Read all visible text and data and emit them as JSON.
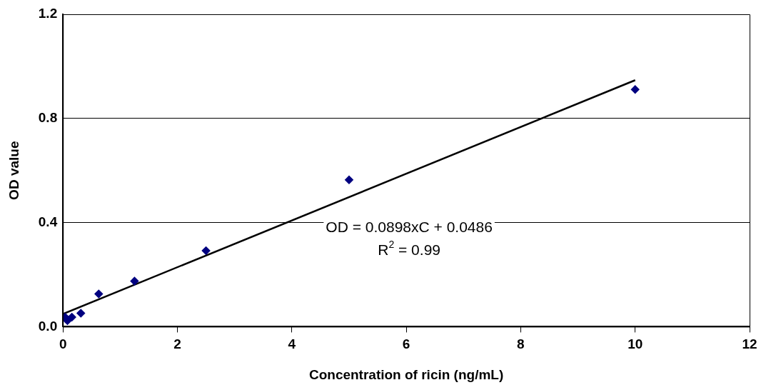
{
  "chart_data": {
    "type": "scatter",
    "xlabel": "Concentration of ricin (ng/mL)",
    "ylabel": "OD value",
    "series": [
      {
        "color": "#000080",
        "marker": "diamond",
        "x": [
          0.039,
          0.078,
          0.156,
          0.3125,
          0.625,
          1.25,
          2.5,
          5,
          10
        ],
        "values": [
          0.037,
          0.023,
          0.037,
          0.052,
          0.126,
          0.175,
          0.292,
          0.564,
          0.911
        ]
      },
      {
        "type": "line",
        "color": "#000000",
        "marker": "none",
        "x": [
          0,
          10
        ],
        "values": [
          0.049,
          0.947
        ]
      }
    ],
    "xlim": [
      0,
      12
    ],
    "xticks": [
      0,
      2,
      4,
      6,
      8,
      10,
      12
    ],
    "ylim": [
      0,
      1.2
    ],
    "yticks": [
      {
        "value": 0,
        "label": "0.0"
      },
      0.4,
      0.8,
      1.2
    ],
    "grid": "y",
    "legend": false,
    "annotations": [
      "OD = 0.0898xC + 0.0486",
      "R$^{2}$ = 0.99"
    ]
  }
}
